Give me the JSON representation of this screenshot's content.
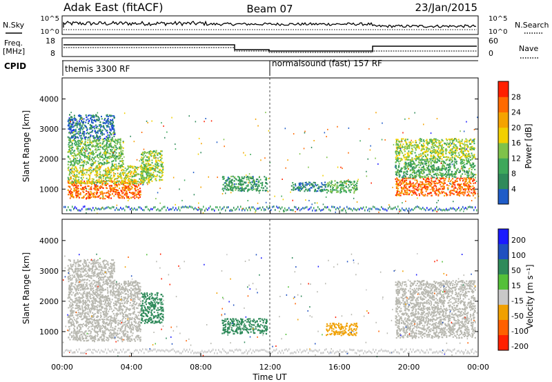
{
  "header": {
    "station": "Adak East (fitACF)",
    "beam": "Beam 07",
    "date": "23/Jan/2015"
  },
  "nsky_panel": {
    "left_label": "N.Sky",
    "right_label": "N.Search",
    "left_ticks": [
      "10^5",
      "10^0"
    ],
    "right_ticks": [
      "10^5",
      "10^0"
    ]
  },
  "freq_panel": {
    "left_label_1": "Freq.",
    "left_label_2": "[MHz]",
    "right_label": "Nave",
    "left_ticks": [
      "18",
      "8"
    ],
    "right_ticks": [
      "60",
      "0"
    ]
  },
  "cpid_panel": {
    "label": "CPID",
    "segments": [
      {
        "text": "themis 3300 RF",
        "start_hour": 0
      },
      {
        "text": "normalsound (fast) 157 RF",
        "start_hour": 12
      }
    ]
  },
  "colors": {
    "power_scale": [
      "#1a1aff",
      "#1f5cc8",
      "#2f8a5a",
      "#3ea85a",
      "#7fc24a",
      "#f2d000",
      "#f5a300",
      "#ff6a00",
      "#ff2000"
    ],
    "velocity_scale": [
      "#1a1aff",
      "#2050c0",
      "#2f8a5a",
      "#55c03a",
      "#c8c8c8",
      "#f0a000",
      "#ff6000",
      "#ff2000"
    ],
    "ground_scatter": "#b8b8b0"
  },
  "chart_data": [
    {
      "type": "heatmap",
      "name": "power",
      "xlabel": "",
      "ylabel": "Slant Range [km]",
      "yticks": [
        "1000",
        "2000",
        "3000",
        "4000"
      ],
      "xlim": [
        0,
        24
      ],
      "ylim": [
        180,
        4700
      ],
      "colorbar_label": "Power [dB]",
      "colorbar_ticks": [
        "4",
        "8",
        "12",
        "16",
        "20",
        "24",
        "28"
      ],
      "colorbar_range": [
        0,
        32
      ],
      "regions": [
        {
          "t0": 0.3,
          "t1": 4.5,
          "r0": 700,
          "r1": 1300,
          "level": 28
        },
        {
          "t0": 0.3,
          "t1": 5.2,
          "r0": 1200,
          "r1": 1800,
          "level": 18
        },
        {
          "t0": 0.3,
          "t1": 3.5,
          "r0": 1800,
          "r1": 2700,
          "level": 14
        },
        {
          "t0": 0.3,
          "t1": 3.0,
          "r0": 2700,
          "r1": 3500,
          "level": 6
        },
        {
          "t0": 4.5,
          "t1": 5.8,
          "r0": 1300,
          "r1": 2300,
          "level": 16
        },
        {
          "t0": 9.2,
          "t1": 11.8,
          "r0": 950,
          "r1": 1450,
          "level": 10
        },
        {
          "t0": 13.2,
          "t1": 15.2,
          "r0": 950,
          "r1": 1250,
          "level": 7
        },
        {
          "t0": 15.2,
          "t1": 17.0,
          "r0": 900,
          "r1": 1300,
          "level": 13
        },
        {
          "t0": 19.2,
          "t1": 23.8,
          "r0": 800,
          "r1": 1400,
          "level": 28
        },
        {
          "t0": 19.2,
          "t1": 23.8,
          "r0": 1400,
          "r1": 2000,
          "level": 12
        },
        {
          "t0": 19.2,
          "t1": 23.8,
          "r0": 2000,
          "r1": 2700,
          "level": 17
        }
      ]
    },
    {
      "type": "heatmap",
      "name": "velocity",
      "xlabel": "Time UT",
      "ylabel": "Slant Range [km]",
      "yticks": [
        "1000",
        "2000",
        "3000",
        "4000"
      ],
      "xticks": [
        "00:00",
        "04:00",
        "08:00",
        "12:00",
        "16:00",
        "20:00",
        "00:00"
      ],
      "xlim": [
        0,
        24
      ],
      "ylim": [
        180,
        4700
      ],
      "colorbar_label": "Velocity [m s⁻¹]",
      "colorbar_ticks": [
        "200",
        "100",
        "50",
        "15",
        "-15",
        "-50",
        "-100",
        "-200"
      ],
      "regions": [
        {
          "t0": 0.3,
          "t1": 4.5,
          "r0": 700,
          "r1": 2700,
          "level": "ground"
        },
        {
          "t0": 0.3,
          "t1": 3.0,
          "r0": 2700,
          "r1": 3400,
          "level": "ground"
        },
        {
          "t0": 4.5,
          "t1": 5.8,
          "r0": 1300,
          "r1": 2300,
          "level": 50
        },
        {
          "t0": 9.2,
          "t1": 11.8,
          "r0": 950,
          "r1": 1450,
          "level": 50
        },
        {
          "t0": 15.2,
          "t1": 17.0,
          "r0": 900,
          "r1": 1300,
          "level": -50
        },
        {
          "t0": 19.2,
          "t1": 23.8,
          "r0": 800,
          "r1": 2700,
          "level": "ground"
        }
      ]
    }
  ]
}
